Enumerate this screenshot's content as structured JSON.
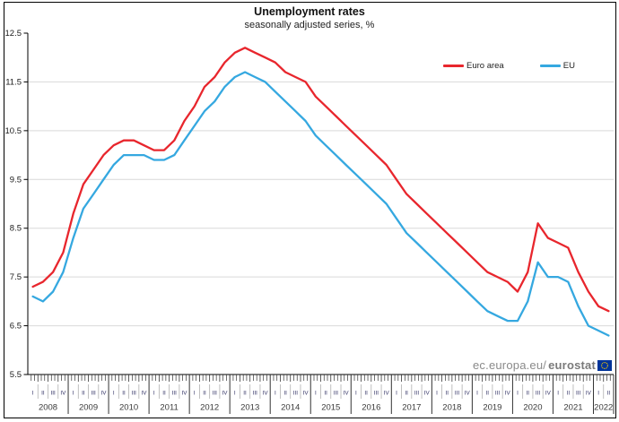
{
  "title": "Unemployment rates",
  "subtitle": "seasonally adjusted series, %",
  "watermark": {
    "prefix": "ec.europa.eu/",
    "bold": "eurostat"
  },
  "colors": {
    "euro_area": "#e8262d",
    "eu": "#35a8e0",
    "grid": "#d9d9d9",
    "axis": "#1a1a1a",
    "quarter_label": "#333366",
    "year_label": "#3a3a3a",
    "watermark_text": "#8a8a8a",
    "flag_blue": "#003399",
    "flag_yellow": "#ffcc00"
  },
  "chart_data": {
    "type": "line",
    "title": "Unemployment rates",
    "subtitle": "seasonally adjusted series, %",
    "x_unit": "quarter",
    "quarter_labels": [
      "I",
      "II",
      "III",
      "IV"
    ],
    "years": [
      2008,
      2009,
      2010,
      2011,
      2012,
      2013,
      2014,
      2015,
      2016,
      2017,
      2018,
      2019,
      2020,
      2021,
      2022
    ],
    "categories": [
      "2008-I",
      "2008-II",
      "2008-III",
      "2008-IV",
      "2009-I",
      "2009-II",
      "2009-III",
      "2009-IV",
      "2010-I",
      "2010-II",
      "2010-III",
      "2010-IV",
      "2011-I",
      "2011-II",
      "2011-III",
      "2011-IV",
      "2012-I",
      "2012-II",
      "2012-III",
      "2012-IV",
      "2013-I",
      "2013-II",
      "2013-III",
      "2013-IV",
      "2014-I",
      "2014-II",
      "2014-III",
      "2014-IV",
      "2015-I",
      "2015-II",
      "2015-III",
      "2015-IV",
      "2016-I",
      "2016-II",
      "2016-III",
      "2016-IV",
      "2017-I",
      "2017-II",
      "2017-III",
      "2017-IV",
      "2018-I",
      "2018-II",
      "2018-III",
      "2018-IV",
      "2019-I",
      "2019-II",
      "2019-III",
      "2019-IV",
      "2020-I",
      "2020-II",
      "2020-III",
      "2020-IV",
      "2021-I",
      "2021-II",
      "2021-III",
      "2021-IV",
      "2022-I",
      "2022-II"
    ],
    "ylim": [
      5.5,
      12.5
    ],
    "yticks": [
      5.5,
      6.5,
      7.5,
      8.5,
      9.5,
      10.5,
      11.5,
      12.5
    ],
    "grid": true,
    "legend_position": "top-right",
    "series": [
      {
        "name": "Euro area",
        "color": "#e8262d",
        "values": [
          7.3,
          7.4,
          7.6,
          8.0,
          8.8,
          9.4,
          9.7,
          10.0,
          10.2,
          10.3,
          10.3,
          10.2,
          10.1,
          10.1,
          10.3,
          10.7,
          11.0,
          11.4,
          11.6,
          11.9,
          12.1,
          12.2,
          12.1,
          12.0,
          11.9,
          11.7,
          11.6,
          11.5,
          11.2,
          11.0,
          10.8,
          10.6,
          10.4,
          10.2,
          10.0,
          9.8,
          9.5,
          9.2,
          9.0,
          8.8,
          8.6,
          8.4,
          8.2,
          8.0,
          7.8,
          7.6,
          7.5,
          7.4,
          7.2,
          7.6,
          8.6,
          8.3,
          8.2,
          8.1,
          7.6,
          7.2,
          6.9,
          6.8
        ]
      },
      {
        "name": "EU",
        "color": "#35a8e0",
        "values": [
          7.1,
          7.0,
          7.2,
          7.6,
          8.3,
          8.9,
          9.2,
          9.5,
          9.8,
          10.0,
          10.0,
          10.0,
          9.9,
          9.9,
          10.0,
          10.3,
          10.6,
          10.9,
          11.1,
          11.4,
          11.6,
          11.7,
          11.6,
          11.5,
          11.3,
          11.1,
          10.9,
          10.7,
          10.4,
          10.2,
          10.0,
          9.8,
          9.6,
          9.4,
          9.2,
          9.0,
          8.7,
          8.4,
          8.2,
          8.0,
          7.8,
          7.6,
          7.4,
          7.2,
          7.0,
          6.8,
          6.7,
          6.6,
          6.6,
          7.0,
          7.8,
          7.5,
          7.5,
          7.4,
          6.9,
          6.5,
          6.4,
          6.3
        ]
      }
    ]
  }
}
